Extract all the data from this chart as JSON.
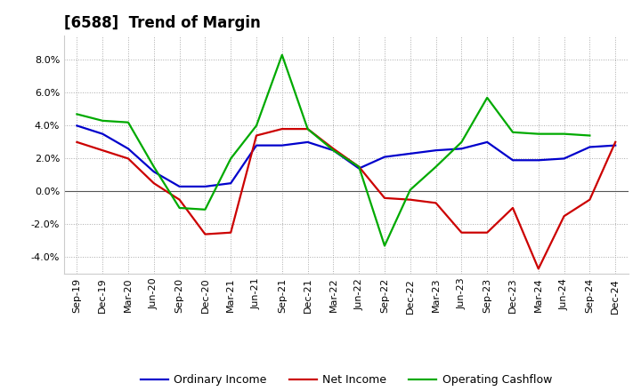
{
  "title": "[6588]  Trend of Margin",
  "x_labels": [
    "Sep-19",
    "Dec-19",
    "Mar-20",
    "Jun-20",
    "Sep-20",
    "Dec-20",
    "Mar-21",
    "Jun-21",
    "Sep-21",
    "Dec-21",
    "Mar-22",
    "Jun-22",
    "Sep-22",
    "Dec-22",
    "Mar-23",
    "Jun-23",
    "Sep-23",
    "Dec-23",
    "Mar-24",
    "Jun-24",
    "Sep-24",
    "Dec-24"
  ],
  "ordinary_income": [
    4.0,
    3.5,
    2.6,
    1.2,
    0.3,
    0.3,
    0.5,
    2.8,
    2.8,
    3.0,
    2.5,
    1.4,
    2.1,
    2.3,
    2.5,
    2.6,
    3.0,
    1.9,
    1.9,
    2.0,
    2.7,
    2.8
  ],
  "net_income": [
    3.0,
    2.5,
    2.0,
    0.5,
    -0.5,
    -2.6,
    -2.5,
    3.4,
    3.8,
    3.8,
    2.6,
    1.5,
    -0.4,
    -0.5,
    -0.7,
    -2.5,
    -2.5,
    -1.0,
    -4.7,
    -1.5,
    -0.5,
    3.0
  ],
  "operating_cashflow": [
    4.7,
    4.3,
    4.2,
    1.5,
    -1.0,
    -1.1,
    2.0,
    4.0,
    8.3,
    3.8,
    2.5,
    1.5,
    -3.3,
    0.1,
    1.5,
    3.0,
    5.7,
    3.6,
    3.5,
    3.5,
    3.4,
    null
  ],
  "ylim": [
    -5.0,
    9.5
  ],
  "yticks": [
    -4.0,
    -2.0,
    0.0,
    2.0,
    4.0,
    6.0,
    8.0
  ],
  "ordinary_income_color": "#0000cc",
  "net_income_color": "#cc0000",
  "operating_cashflow_color": "#00aa00",
  "background_color": "#ffffff",
  "plot_bg_color": "#ffffff",
  "grid_color": "#aaaaaa",
  "title_fontsize": 12,
  "legend_fontsize": 9,
  "tick_fontsize": 8
}
